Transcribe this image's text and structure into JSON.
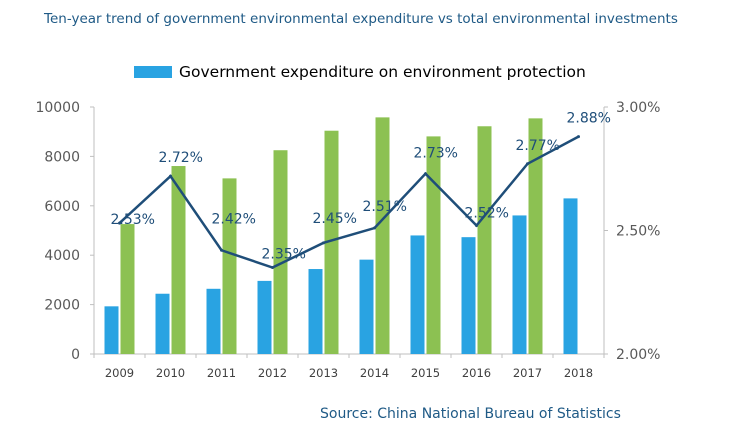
{
  "title": "Ten-year trend of government environmental expenditure vs total environmental investments",
  "source": "Source: China National Bureau of Statistics",
  "chart_data": {
    "type": "bar",
    "categories": [
      "2009",
      "2010",
      "2011",
      "2012",
      "2013",
      "2014",
      "2015",
      "2016",
      "2017",
      "2018"
    ],
    "series": [
      {
        "name": "Government expenditure on environment protection",
        "kind": "bar",
        "axis": "left",
        "color": "#29a3e2",
        "values": [
          1930,
          2440,
          2640,
          2960,
          3440,
          3820,
          4800,
          4730,
          5610,
          6300
        ]
      },
      {
        "name": "",
        "kind": "bar",
        "axis": "left",
        "color": "#8cc152",
        "values": [
          5260,
          7610,
          7110,
          8250,
          9040,
          9580,
          8810,
          9220,
          9540,
          null
        ]
      },
      {
        "name": "",
        "kind": "line",
        "axis": "right",
        "color": "#1f4e79",
        "values": [
          2.53,
          2.72,
          2.42,
          2.35,
          2.45,
          2.51,
          2.73,
          2.52,
          2.77,
          2.88
        ],
        "labels": [
          "2.53%",
          "2.72%",
          "2.42%",
          "2.35%",
          "2.45%",
          "2.51%",
          "2.73%",
          "2.52%",
          "2.77%",
          "2.88%"
        ]
      }
    ],
    "y_left": {
      "min": 0,
      "max": 10000,
      "ticks": [
        "0",
        "2000",
        "4000",
        "6000",
        "8000",
        "10000"
      ]
    },
    "y_right": {
      "min": 2.0,
      "max": 3.0,
      "ticks": [
        "2.00%",
        "2.50%",
        "3.00%"
      ]
    },
    "grid": false,
    "legend": "top-center"
  }
}
